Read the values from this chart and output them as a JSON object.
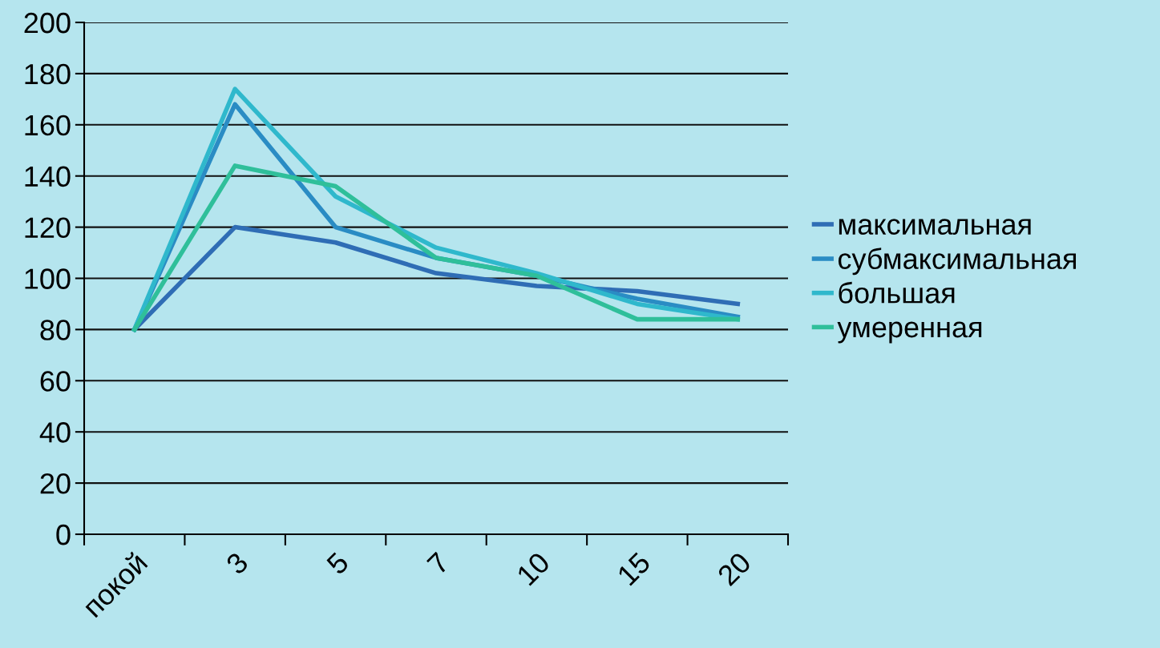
{
  "chart_data": {
    "type": "line",
    "categories": [
      "покой",
      "3",
      "5",
      "7",
      "10",
      "15",
      "20"
    ],
    "series": [
      {
        "name": "максимальная",
        "color": "#2f6db5",
        "values": [
          80,
          120,
          114,
          102,
          97,
          95,
          90
        ]
      },
      {
        "name": "субмаксимальная",
        "color": "#2a8cc4",
        "values": [
          80,
          168,
          120,
          108,
          101,
          92,
          85
        ]
      },
      {
        "name": "большая",
        "color": "#2fb8cc",
        "values": [
          80,
          174,
          132,
          112,
          102,
          90,
          84
        ]
      },
      {
        "name": "умеренная",
        "color": "#2fbf9a",
        "values": [
          80,
          144,
          136,
          108,
          101,
          84,
          84
        ]
      }
    ],
    "ylim": [
      0,
      200
    ],
    "yticks": [
      0,
      20,
      40,
      60,
      80,
      100,
      120,
      140,
      160,
      180,
      200
    ],
    "grid": "y",
    "legend": "right",
    "marker": "none",
    "line_style": "solid"
  }
}
